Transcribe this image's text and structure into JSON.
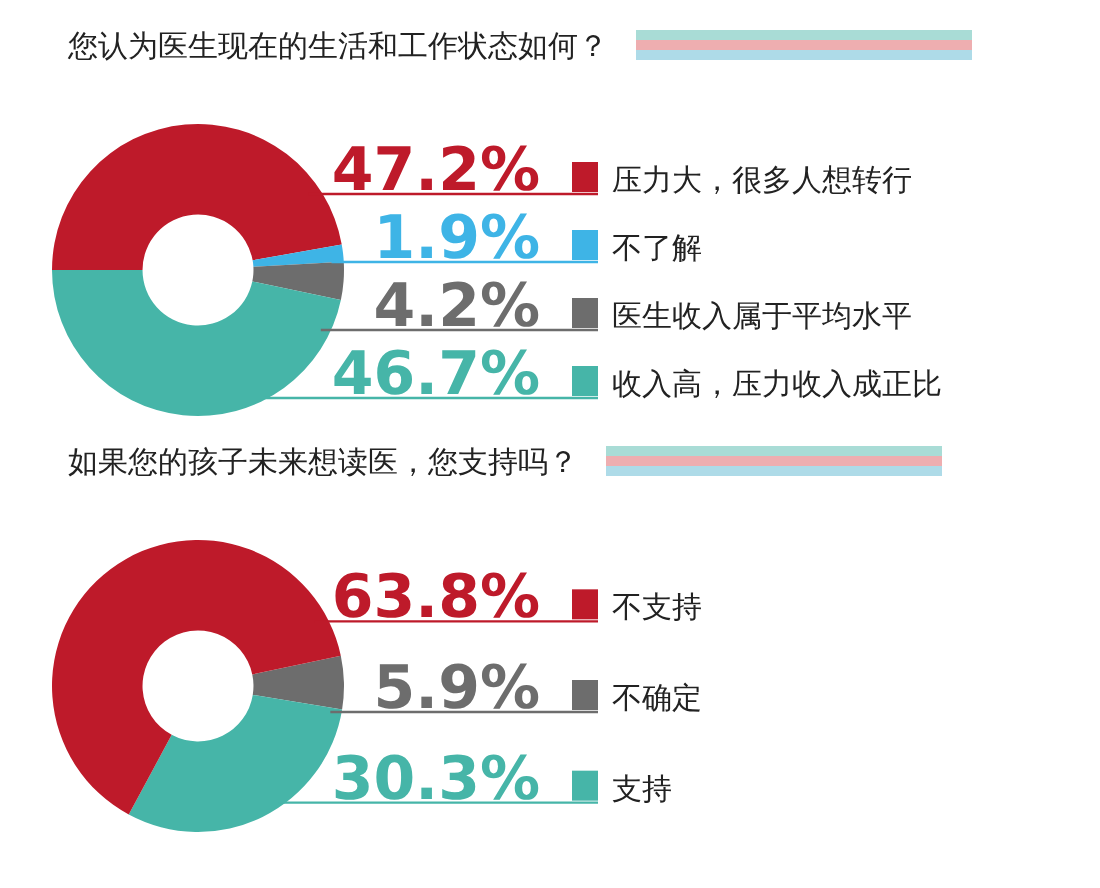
{
  "chart_data": [
    {
      "type": "donut",
      "title": "您认为医生现在的生活和工作状态如何？",
      "categories": [
        "压力大，很多人想转行",
        "不了解",
        "医生收入属于平均水平",
        "收入高，压力收入成正比"
      ],
      "values": [
        47.2,
        1.9,
        4.2,
        46.7
      ],
      "value_labels": [
        "47.2%",
        "1.9%",
        "4.2%",
        "46.7%"
      ],
      "colors": [
        "#be1a2a",
        "#3eb4e6",
        "#6d6d6d",
        "#46b5a8"
      ],
      "legend": "right"
    },
    {
      "type": "donut",
      "title": "如果您的孩子未来想读医，您支持吗？",
      "categories": [
        "不支持",
        "不确定",
        "支持"
      ],
      "values": [
        63.8,
        5.9,
        30.3
      ],
      "value_labels": [
        "63.8%",
        "5.9%",
        "30.3%"
      ],
      "colors": [
        "#be1a2a",
        "#6d6d6d",
        "#46b5a8"
      ],
      "legend": "right"
    }
  ]
}
